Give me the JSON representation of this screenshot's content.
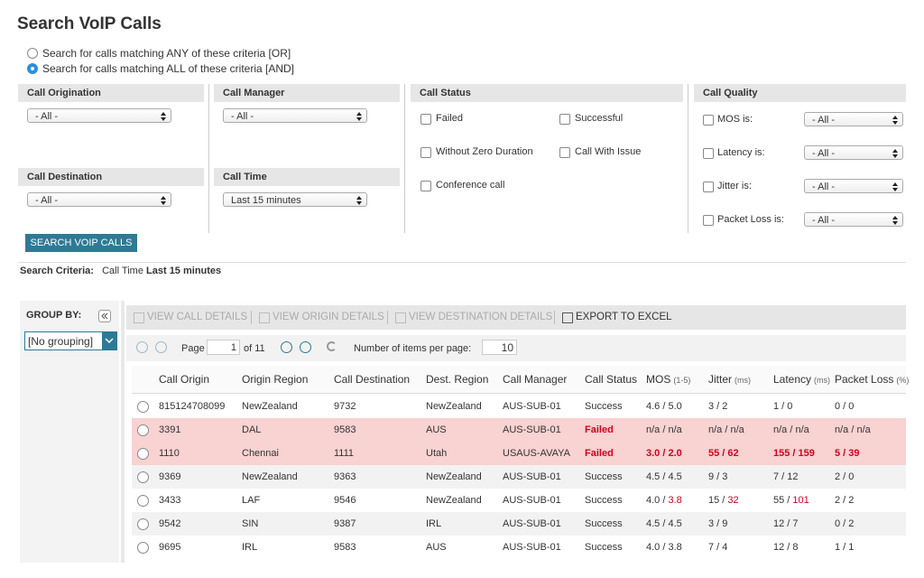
{
  "header": {
    "title": "Search VoIP Calls"
  },
  "match_options": [
    {
      "label": "Search for calls matching ANY of these criteria [OR]",
      "selected": false
    },
    {
      "label": "Search for calls matching ALL of these criteria [AND]",
      "selected": true
    }
  ],
  "filters": {
    "call_origination": {
      "label": "Call Origination",
      "value": "- All -"
    },
    "call_manager": {
      "label": "Call Manager",
      "value": "- All -"
    },
    "call_destination": {
      "label": "Call Destination",
      "value": "- All -"
    },
    "call_time": {
      "label": "Call Time",
      "value": "Last 15 minutes"
    },
    "call_status": {
      "label": "Call Status",
      "options": [
        "Failed",
        "Successful",
        "Without Zero Duration",
        "Call With Issue",
        "Conference call"
      ]
    },
    "call_quality": {
      "label": "Call Quality",
      "fields": [
        {
          "label": "MOS is:",
          "value": "- All -"
        },
        {
          "label": "Latency is:",
          "value": "- All -"
        },
        {
          "label": "Jitter is:",
          "value": "- All -"
        },
        {
          "label": "Packet Loss is:",
          "value": "- All -"
        }
      ]
    }
  },
  "search_button": "SEARCH VOIP CALLS",
  "criteria": {
    "label": "Search Criteria:",
    "field": "Call Time",
    "value": "Last 15 minutes"
  },
  "group_by": {
    "label": "GROUP BY:",
    "value": "[No grouping]"
  },
  "toolbar": [
    "VIEW CALL DETAILS",
    "VIEW ORIGIN DETAILS",
    "VIEW DESTINATION DETAILS",
    "EXPORT TO EXCEL"
  ],
  "pager": {
    "page_label": "Page",
    "page": 1,
    "of": "of 11",
    "items_label": "Number of items per page:",
    "items": 10
  },
  "table": {
    "columns": [
      {
        "label": "Call Origin"
      },
      {
        "label": "Origin Region"
      },
      {
        "label": "Call Destination"
      },
      {
        "label": "Dest. Region"
      },
      {
        "label": "Call Manager"
      },
      {
        "label": "Call Status"
      },
      {
        "label": "MOS",
        "unit": "(1-5)"
      },
      {
        "label": "Jitter",
        "unit": "(ms)"
      },
      {
        "label": "Latency",
        "unit": "(ms)"
      },
      {
        "label": "Packet Loss",
        "unit": "(%)"
      }
    ],
    "rows": [
      {
        "failed": false,
        "cells": [
          "815124708099",
          "NewZealand",
          "9732",
          "NewZealand",
          "AUS-SUB-01",
          "Success",
          "4.6 / 5.0",
          "3 / 2",
          "1 / 0",
          "0 / 0"
        ]
      },
      {
        "failed": true,
        "cells": [
          "3391",
          "DAL",
          "9583",
          "AUS",
          "AUS-SUB-01",
          {
            "text": "Failed",
            "style": "red-bold"
          },
          "n/a / n/a",
          "n/a / n/a",
          "n/a / n/a",
          "n/a / n/a"
        ]
      },
      {
        "failed": true,
        "cells": [
          "1110",
          "Chennai",
          "1111",
          "Utah",
          "USAUS-AVAYA",
          {
            "text": "Failed",
            "style": "red-bold"
          },
          {
            "text": "3.0 / 2.0",
            "style": "red-bold"
          },
          {
            "text": "55 / 62",
            "style": "red-bold"
          },
          {
            "text": "155 / 159",
            "style": "red-bold"
          },
          {
            "text": "5 / 39",
            "style": "red-bold"
          }
        ]
      },
      {
        "failed": false,
        "cells": [
          "9369",
          "NewZealand",
          "9363",
          "NewZealand",
          "AUS-SUB-01",
          "Success",
          "4.5 / 4.5",
          "9 / 3",
          "7 / 12",
          "2 / 0"
        ]
      },
      {
        "failed": false,
        "cells": [
          "3433",
          "LAF",
          "9546",
          "NewZealand",
          "AUS-SUB-01",
          "Success",
          [
            "4.0 / ",
            {
              "text": "3.8",
              "style": "red"
            }
          ],
          [
            "15 / ",
            {
              "text": "32",
              "style": "red"
            }
          ],
          [
            "55 / ",
            {
              "text": "101",
              "style": "red"
            }
          ],
          "2 / 2"
        ]
      },
      {
        "failed": false,
        "cells": [
          "9542",
          "SIN",
          "9387",
          "IRL",
          "AUS-SUB-01",
          "Success",
          "4.5 / 4.5",
          "3 / 9",
          "12 / 7",
          "0 / 2"
        ]
      },
      {
        "failed": false,
        "cells": [
          "9695",
          "IRL",
          "9583",
          "AUS",
          "AUS-SUB-01",
          "Success",
          "4.0 / 3.8",
          "7 / 4",
          "12 / 8",
          "1 / 1"
        ]
      }
    ]
  }
}
